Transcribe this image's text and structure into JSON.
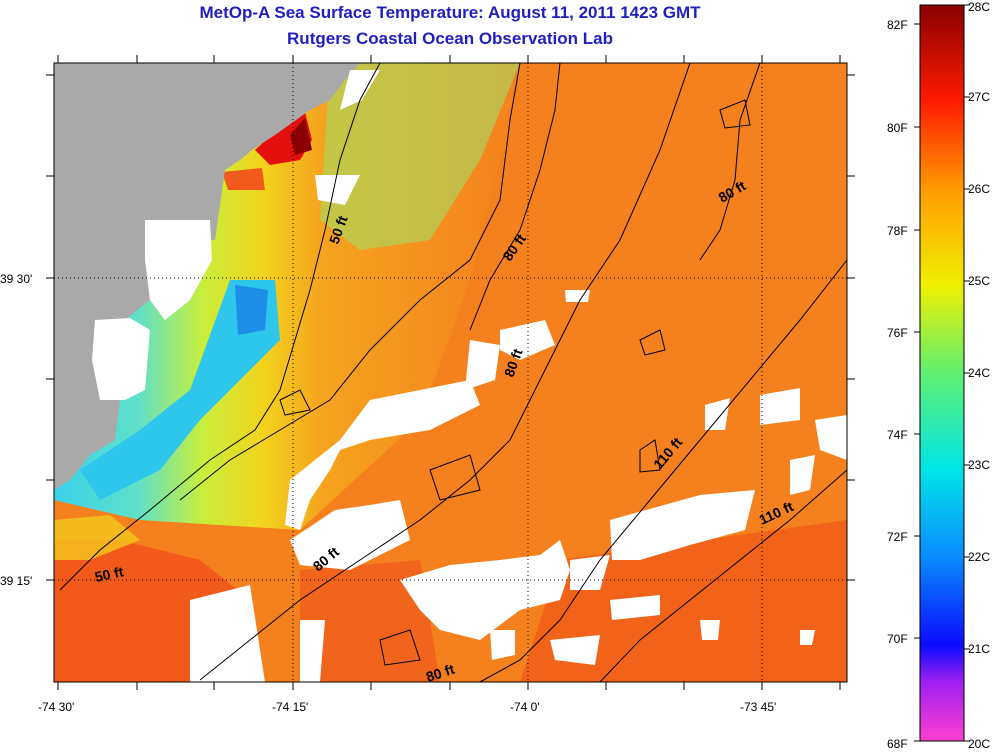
{
  "title": "MetOp-A Sea Surface Temperature:  August 11, 2011 1423 GMT",
  "subtitle": "Rutgers Coastal Ocean Observation Lab",
  "latitude_labels": [
    "39 30'",
    "39 15'"
  ],
  "longitude_labels": [
    "-74 30'",
    "-74 15'",
    "-74 0'",
    "-73 45'"
  ],
  "depth_contour_labels": [
    "50 ft",
    "80 ft",
    "80 ft",
    "80 ft",
    "110 ft",
    "110 ft",
    "80 ft",
    "50 ft",
    "80 ft"
  ],
  "colorbar": {
    "fahrenheit_labels": [
      "82F",
      "80F",
      "78F",
      "76F",
      "74F",
      "72F",
      "70F",
      "68F"
    ],
    "celsius_labels": [
      "28C",
      "27C",
      "26C",
      "25C",
      "24C",
      "23C",
      "22C",
      "21C",
      "20C"
    ],
    "range_celsius": [
      20,
      28
    ]
  },
  "colors": {
    "title": "#1f1fbf",
    "land": "#a9a9a9",
    "cloud_mask": "#ffffff",
    "water_dominant": "#f5821e",
    "nearshore_cool": "#3cc8e6"
  }
}
